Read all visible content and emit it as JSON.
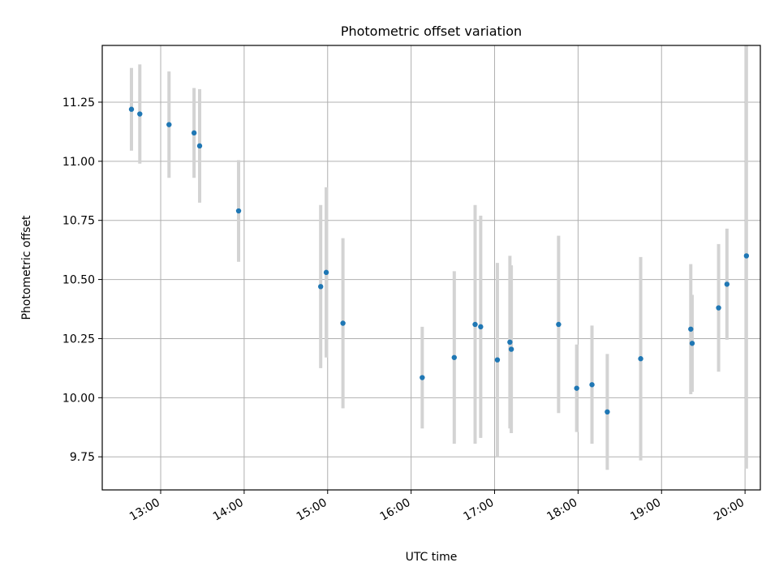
{
  "chart_data": {
    "type": "scatter",
    "title": "Photometric offset variation",
    "xlabel": "UTC time",
    "ylabel": "Photometric offset",
    "x_is_time": true,
    "xlim": [
      "12:18",
      "20:11"
    ],
    "ylim": [
      9.61,
      11.49
    ],
    "xticks": [
      "13:00",
      "14:00",
      "15:00",
      "16:00",
      "17:00",
      "18:00",
      "19:00",
      "20:00"
    ],
    "yticks": [
      "9.75",
      "10.00",
      "10.25",
      "10.50",
      "10.75",
      "11.00",
      "11.25"
    ],
    "grid": true,
    "colors": {
      "points": "#1f77b4",
      "errorbars": "#d3d3d3",
      "grid": "#b0b0b0"
    },
    "points": [
      {
        "x": "12:39",
        "y": 11.22,
        "err": 0.175
      },
      {
        "x": "12:45",
        "y": 11.2,
        "err": 0.21
      },
      {
        "x": "13:06",
        "y": 11.155,
        "err": 0.225
      },
      {
        "x": "13:24",
        "y": 11.12,
        "err": 0.19
      },
      {
        "x": "13:28",
        "y": 11.065,
        "err": 0.24
      },
      {
        "x": "13:56",
        "y": 10.79,
        "err": 0.215
      },
      {
        "x": "14:55",
        "y": 10.47,
        "err": 0.345
      },
      {
        "x": "14:59",
        "y": 10.53,
        "err": 0.36
      },
      {
        "x": "15:11",
        "y": 10.315,
        "err": 0.36
      },
      {
        "x": "16:08",
        "y": 10.085,
        "err": 0.215
      },
      {
        "x": "16:31",
        "y": 10.17,
        "err": 0.365
      },
      {
        "x": "16:46",
        "y": 10.31,
        "err": 0.505
      },
      {
        "x": "16:50",
        "y": 10.3,
        "err": 0.47
      },
      {
        "x": "17:02",
        "y": 10.16,
        "err": 0.41
      },
      {
        "x": "17:11",
        "y": 10.235,
        "err": 0.365
      },
      {
        "x": "17:12",
        "y": 10.205,
        "err": 0.355
      },
      {
        "x": "17:46",
        "y": 10.31,
        "err": 0.375
      },
      {
        "x": "17:59",
        "y": 10.04,
        "err": 0.185
      },
      {
        "x": "18:10",
        "y": 10.055,
        "err": 0.25
      },
      {
        "x": "18:21",
        "y": 9.94,
        "err": 0.245
      },
      {
        "x": "18:45",
        "y": 10.165,
        "err": 0.43
      },
      {
        "x": "19:21",
        "y": 10.29,
        "err": 0.275
      },
      {
        "x": "19:22",
        "y": 10.23,
        "err": 0.205
      },
      {
        "x": "19:41",
        "y": 10.38,
        "err": 0.27
      },
      {
        "x": "19:47",
        "y": 10.48,
        "err": 0.235
      },
      {
        "x": "20:01",
        "y": 10.6,
        "err": 0.9
      }
    ]
  }
}
